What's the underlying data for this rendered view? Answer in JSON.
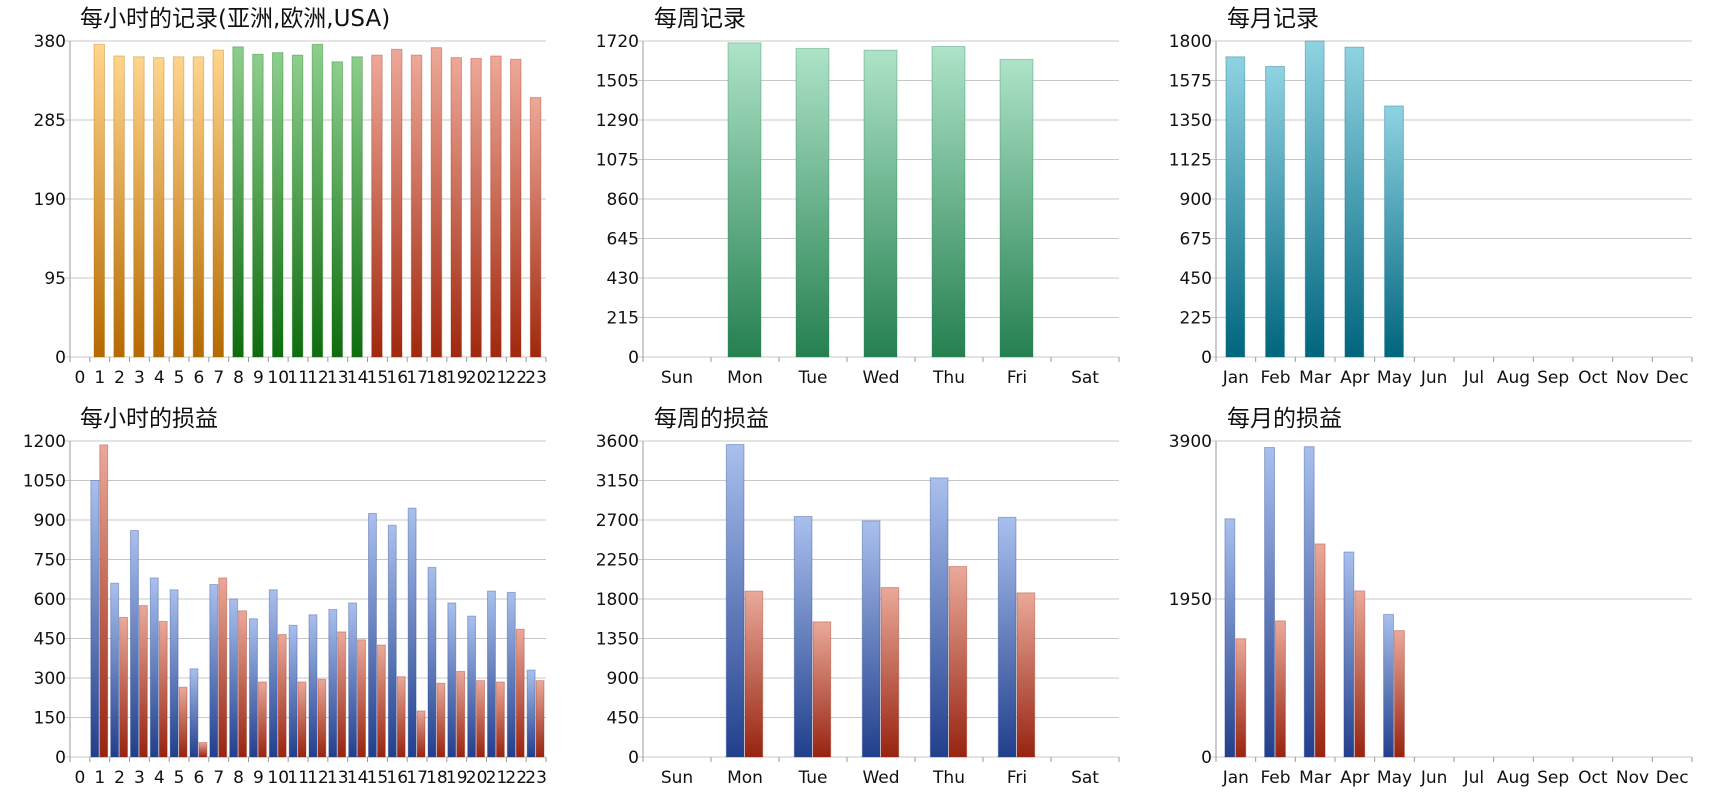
{
  "colors": {
    "hourly_asia": [
      "#ffd58c",
      "#b56a00"
    ],
    "hourly_europe": [
      "#8dcf8d",
      "#0e6c0e"
    ],
    "hourly_usa": [
      "#eea898",
      "#a0280e"
    ],
    "weekly_records": [
      "#aee3c8",
      "#258050"
    ],
    "monthly_records": [
      "#8fd3e2",
      "#00657e"
    ],
    "profit_blue": [
      "#a9c0ee",
      "#223f8c"
    ],
    "profit_red": [
      "#eaa99a",
      "#972410"
    ],
    "grid": "#c8c8c8"
  },
  "chart_data": [
    {
      "id": "hourly-records",
      "type": "bar",
      "title": "每小时的记录(亚洲,欧洲,USA)",
      "categories": [
        "0",
        "1",
        "2",
        "3",
        "4",
        "5",
        "6",
        "7",
        "8",
        "9",
        "10",
        "11",
        "12",
        "13",
        "14",
        "15",
        "16",
        "17",
        "18",
        "19",
        "20",
        "21",
        "22",
        "23"
      ],
      "ylim": [
        0,
        380
      ],
      "yticks": [
        0,
        95,
        190,
        285,
        380
      ],
      "grid": true,
      "series": [
        {
          "values": [
            0,
            376,
            362,
            361,
            360,
            361,
            361,
            369,
            373,
            364,
            366,
            363,
            376,
            355,
            361,
            363,
            370,
            363,
            372,
            360,
            359,
            362,
            358,
            312
          ],
          "region_colors": [
            "asia",
            "asia",
            "asia",
            "asia",
            "asia",
            "asia",
            "asia",
            "asia",
            "europe",
            "europe",
            "europe",
            "europe",
            "europe",
            "europe",
            "europe",
            "usa",
            "usa",
            "usa",
            "usa",
            "usa",
            "usa",
            "usa",
            "usa",
            "usa"
          ]
        }
      ]
    },
    {
      "id": "weekly-records",
      "type": "bar",
      "title": "每周记录",
      "categories": [
        "Sun",
        "Mon",
        "Tue",
        "Wed",
        "Thu",
        "Fri",
        "Sat"
      ],
      "ylim": [
        0,
        1720
      ],
      "yticks": [
        0,
        215,
        430,
        645,
        860,
        1075,
        1290,
        1505,
        1720
      ],
      "grid": true,
      "series": [
        {
          "values": [
            0,
            1710,
            1680,
            1670,
            1690,
            1620,
            0
          ],
          "color": "weekly_records"
        }
      ]
    },
    {
      "id": "monthly-records",
      "type": "bar",
      "title": "每月记录",
      "categories": [
        "Jan",
        "Feb",
        "Mar",
        "Apr",
        "May",
        "Jun",
        "Jul",
        "Aug",
        "Sep",
        "Oct",
        "Nov",
        "Dec"
      ],
      "ylim": [
        0,
        1800
      ],
      "yticks": [
        0,
        225,
        450,
        675,
        900,
        1125,
        1350,
        1575,
        1800
      ],
      "grid": true,
      "series": [
        {
          "values": [
            1710,
            1655,
            1800,
            1765,
            1430,
            0,
            0,
            0,
            0,
            0,
            0,
            0
          ],
          "color": "monthly_records"
        }
      ]
    },
    {
      "id": "hourly-profit",
      "type": "bar",
      "title": "每小时的损益",
      "categories": [
        "0",
        "1",
        "2",
        "3",
        "4",
        "5",
        "6",
        "7",
        "8",
        "9",
        "10",
        "11",
        "12",
        "13",
        "14",
        "15",
        "16",
        "17",
        "18",
        "19",
        "20",
        "21",
        "22",
        "23"
      ],
      "ylim": [
        0,
        1200
      ],
      "yticks": [
        0,
        150,
        300,
        450,
        600,
        750,
        900,
        1050,
        1200
      ],
      "grid": true,
      "series": [
        {
          "color": "profit_blue",
          "values": [
            0,
            1050,
            660,
            860,
            680,
            635,
            335,
            655,
            600,
            525,
            635,
            500,
            540,
            560,
            585,
            925,
            880,
            945,
            720,
            585,
            535,
            630,
            625,
            330
          ]
        },
        {
          "color": "profit_red",
          "values": [
            0,
            1185,
            530,
            575,
            515,
            265,
            55,
            680,
            555,
            285,
            465,
            285,
            295,
            475,
            445,
            425,
            305,
            175,
            280,
            325,
            290,
            285,
            485,
            290
          ]
        }
      ]
    },
    {
      "id": "weekly-profit",
      "type": "bar",
      "title": "每周的损益",
      "categories": [
        "Sun",
        "Mon",
        "Tue",
        "Wed",
        "Thu",
        "Fri",
        "Sat"
      ],
      "ylim": [
        0,
        3600
      ],
      "yticks": [
        0,
        450,
        900,
        1350,
        1800,
        2250,
        2700,
        3150,
        3600
      ],
      "grid": true,
      "series": [
        {
          "color": "profit_blue",
          "values": [
            0,
            3560,
            2740,
            2690,
            3180,
            2730,
            0
          ]
        },
        {
          "color": "profit_red",
          "values": [
            0,
            1890,
            1540,
            1930,
            2170,
            1870,
            0
          ]
        }
      ]
    },
    {
      "id": "monthly-profit",
      "type": "bar",
      "title": "每月的损益",
      "categories": [
        "Jan",
        "Feb",
        "Mar",
        "Apr",
        "May",
        "Jun",
        "Jul",
        "Aug",
        "Sep",
        "Oct",
        "Nov",
        "Dec"
      ],
      "ylim": [
        0,
        3900
      ],
      "yticks": [
        0,
        1950,
        3900
      ],
      "grid": true,
      "series": [
        {
          "color": "profit_blue",
          "values": [
            2940,
            3820,
            3830,
            2530,
            1760,
            0,
            0,
            0,
            0,
            0,
            0,
            0
          ]
        },
        {
          "color": "profit_red",
          "values": [
            1460,
            1680,
            2630,
            2050,
            1560,
            0,
            0,
            0,
            0,
            0,
            0,
            0
          ]
        }
      ]
    }
  ]
}
